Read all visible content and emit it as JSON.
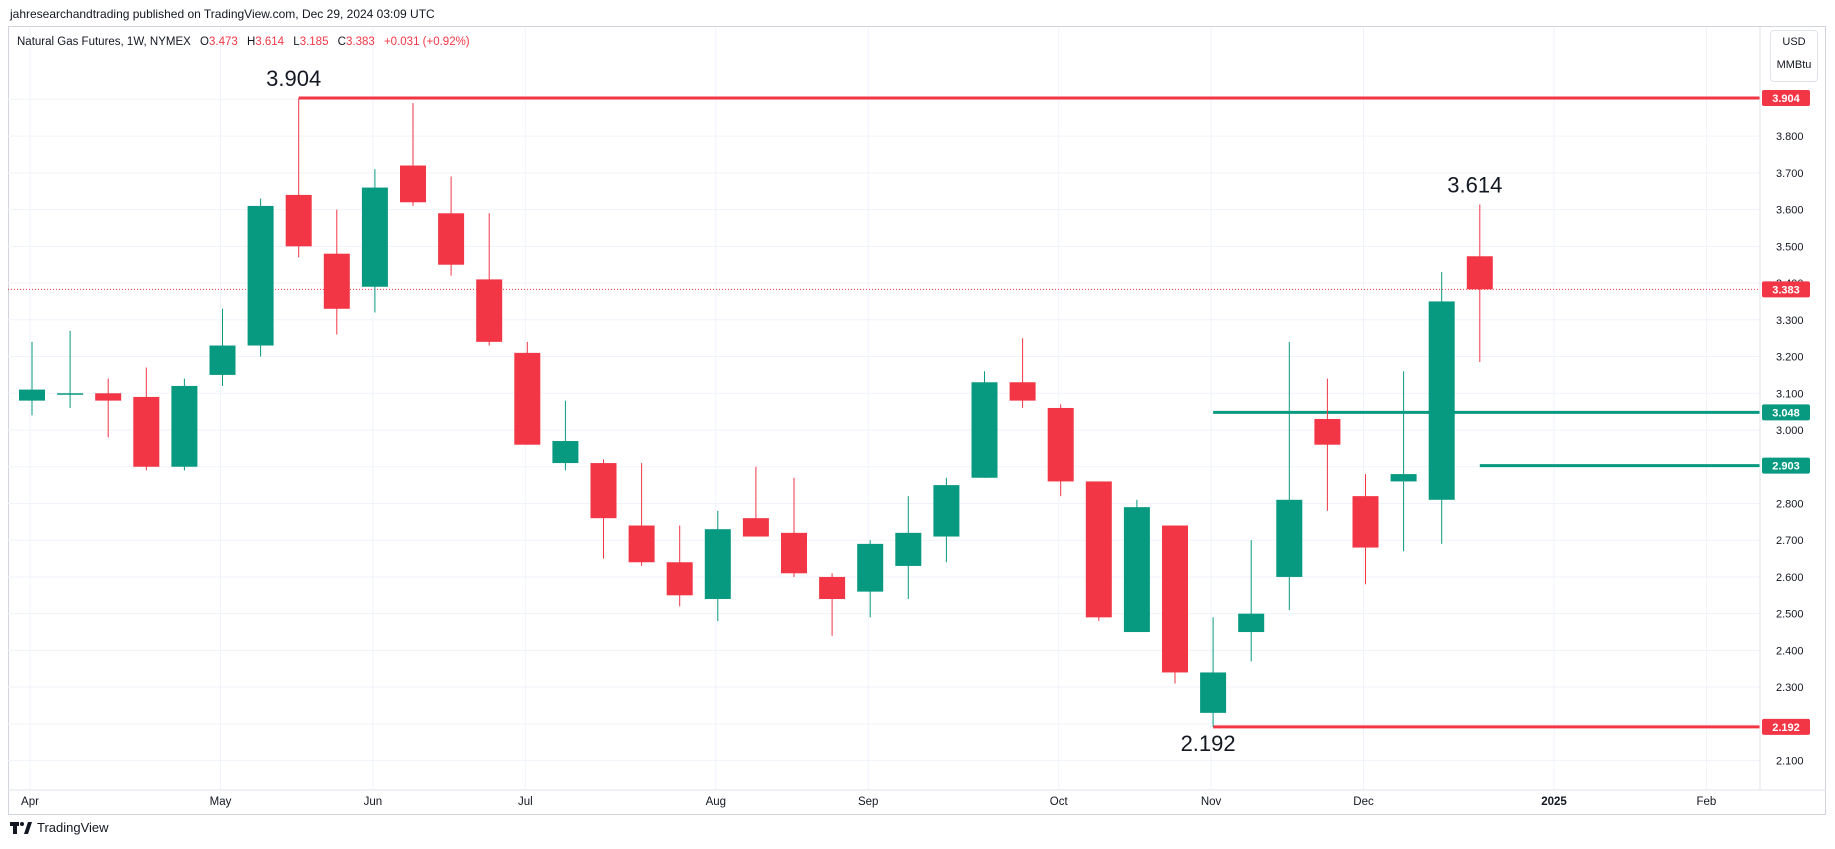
{
  "header": {
    "publisher_line": "jahresearchandtrading published on TradingView.com, Dec 29, 2024 03:09 UTC"
  },
  "legend": {
    "symbol": "Natural Gas Futures, 1W, NYMEX",
    "open_label": "O",
    "open": "3.473",
    "high_label": "H",
    "high": "3.614",
    "low_label": "L",
    "low": "3.185",
    "close_label": "C",
    "close": "3.383",
    "change": "+0.031 (+0.92%)"
  },
  "units": {
    "currency": "USD",
    "unit": "MMBtu"
  },
  "footer": {
    "brand": "TradingView"
  },
  "colors": {
    "up": "#089981",
    "down": "#f23645",
    "grid": "#f0f3fa",
    "axis_text": "#131722"
  },
  "chart_data": {
    "type": "candlestick",
    "title": "Natural Gas Futures, 1W, NYMEX",
    "ylim": [
      2.02,
      4.01
    ],
    "y_ticks": [
      2.1,
      2.2,
      2.3,
      2.4,
      2.5,
      2.6,
      2.7,
      2.8,
      2.9,
      3.0,
      3.1,
      3.2,
      3.3,
      3.4,
      3.5,
      3.6,
      3.7,
      3.8,
      3.9
    ],
    "y_tick_labels": [
      "2.100",
      "2.200",
      "2.300",
      "2.400",
      "2.500",
      "2.600",
      "2.700",
      "2.800",
      "2.900",
      "3.000",
      "3.100",
      "3.200",
      "3.300",
      "3.400",
      "3.500",
      "3.600",
      "3.700",
      "3.800",
      "3.900"
    ],
    "x_labels": [
      "Apr",
      "May",
      "Jun",
      "Jul",
      "Aug",
      "Sep",
      "Oct",
      "Nov",
      "Dec",
      "2025",
      "Feb"
    ],
    "x_label_week": [
      0,
      5,
      9,
      13,
      18,
      22,
      27,
      31,
      35,
      40,
      44
    ],
    "candles": [
      {
        "o": 3.08,
        "h": 3.24,
        "l": 3.04,
        "c": 3.11
      },
      {
        "o": 3.1,
        "h": 3.27,
        "l": 3.06,
        "c": 3.1
      },
      {
        "o": 3.1,
        "h": 3.14,
        "l": 2.98,
        "c": 3.08
      },
      {
        "o": 3.09,
        "h": 3.17,
        "l": 2.89,
        "c": 2.9
      },
      {
        "o": 2.9,
        "h": 3.14,
        "l": 2.89,
        "c": 3.12
      },
      {
        "o": 3.15,
        "h": 3.33,
        "l": 3.12,
        "c": 3.23
      },
      {
        "o": 3.23,
        "h": 3.63,
        "l": 3.2,
        "c": 3.61
      },
      {
        "o": 3.64,
        "h": 3.904,
        "l": 3.47,
        "c": 3.5
      },
      {
        "o": 3.48,
        "h": 3.6,
        "l": 3.26,
        "c": 3.33
      },
      {
        "o": 3.39,
        "h": 3.71,
        "l": 3.32,
        "c": 3.66
      },
      {
        "o": 3.72,
        "h": 3.89,
        "l": 3.61,
        "c": 3.62
      },
      {
        "o": 3.59,
        "h": 3.69,
        "l": 3.42,
        "c": 3.45
      },
      {
        "o": 3.41,
        "h": 3.59,
        "l": 3.23,
        "c": 3.24
      },
      {
        "o": 3.21,
        "h": 3.24,
        "l": 2.96,
        "c": 2.96
      },
      {
        "o": 2.91,
        "h": 3.08,
        "l": 2.89,
        "c": 2.97
      },
      {
        "o": 2.91,
        "h": 2.92,
        "l": 2.65,
        "c": 2.76
      },
      {
        "o": 2.74,
        "h": 2.91,
        "l": 2.63,
        "c": 2.64
      },
      {
        "o": 2.64,
        "h": 2.74,
        "l": 2.52,
        "c": 2.55
      },
      {
        "o": 2.54,
        "h": 2.78,
        "l": 2.48,
        "c": 2.73
      },
      {
        "o": 2.76,
        "h": 2.9,
        "l": 2.71,
        "c": 2.71
      },
      {
        "o": 2.72,
        "h": 2.87,
        "l": 2.6,
        "c": 2.61
      },
      {
        "o": 2.6,
        "h": 2.61,
        "l": 2.44,
        "c": 2.54
      },
      {
        "o": 2.56,
        "h": 2.7,
        "l": 2.49,
        "c": 2.69
      },
      {
        "o": 2.63,
        "h": 2.82,
        "l": 2.54,
        "c": 2.72
      },
      {
        "o": 2.71,
        "h": 2.87,
        "l": 2.64,
        "c": 2.85
      },
      {
        "o": 2.87,
        "h": 3.16,
        "l": 2.87,
        "c": 3.13
      },
      {
        "o": 3.13,
        "h": 3.25,
        "l": 3.06,
        "c": 3.08
      },
      {
        "o": 3.06,
        "h": 3.07,
        "l": 2.82,
        "c": 2.86
      },
      {
        "o": 2.86,
        "h": 2.86,
        "l": 2.48,
        "c": 2.49
      },
      {
        "o": 2.45,
        "h": 2.81,
        "l": 2.45,
        "c": 2.79
      },
      {
        "o": 2.74,
        "h": 2.74,
        "l": 2.31,
        "c": 2.34
      },
      {
        "o": 2.23,
        "h": 2.49,
        "l": 2.192,
        "c": 2.34
      },
      {
        "o": 2.45,
        "h": 2.7,
        "l": 2.37,
        "c": 2.5
      },
      {
        "o": 2.6,
        "h": 3.24,
        "l": 2.51,
        "c": 2.81
      },
      {
        "o": 3.03,
        "h": 3.14,
        "l": 2.78,
        "c": 2.96
      },
      {
        "o": 2.82,
        "h": 2.88,
        "l": 2.58,
        "c": 2.68
      },
      {
        "o": 2.86,
        "h": 3.16,
        "l": 2.67,
        "c": 2.88
      },
      {
        "o": 2.81,
        "h": 3.43,
        "l": 2.69,
        "c": 3.35
      },
      {
        "o": 3.473,
        "h": 3.614,
        "l": 3.185,
        "c": 3.383
      }
    ],
    "levels": [
      {
        "value": 3.904,
        "label": "3.904",
        "color": "#f23645",
        "from_week": 7
      },
      {
        "value": 3.048,
        "label": "3.048",
        "color": "#089981",
        "from_week": 31
      },
      {
        "value": 2.903,
        "label": "2.903",
        "color": "#089981",
        "from_week": 38
      },
      {
        "value": 2.192,
        "label": "2.192",
        "color": "#f23645",
        "from_week": 31
      }
    ],
    "last_price": {
      "value": 3.383,
      "label": "3.383",
      "color": "#f23645"
    },
    "annotations": [
      {
        "text": "3.904",
        "week": 7,
        "value": 3.904,
        "position": "above"
      },
      {
        "text": "3.614",
        "week": 38,
        "value": 3.614,
        "position": "above"
      },
      {
        "text": "2.192",
        "week": 31,
        "value": 2.192,
        "position": "below"
      }
    ]
  }
}
